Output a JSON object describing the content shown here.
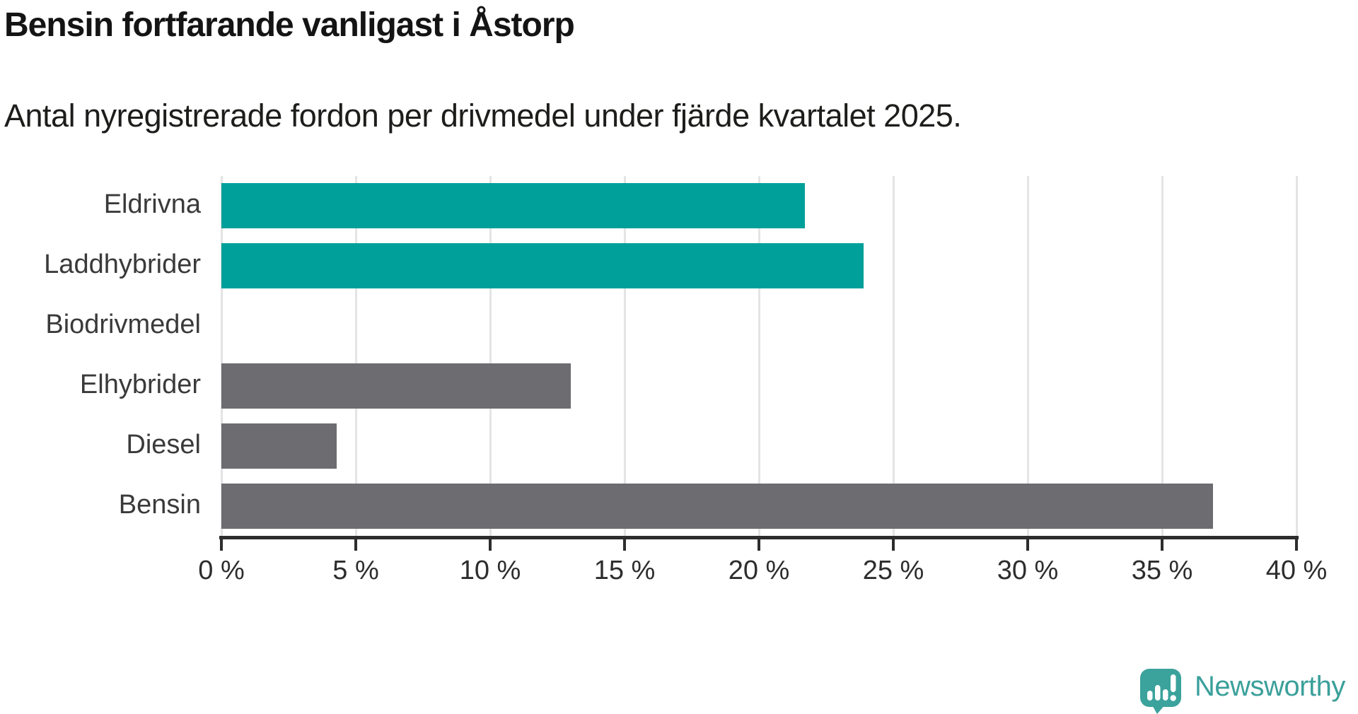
{
  "header": {
    "title": "Bensin fortfarande vanligast i Åstorp",
    "subtitle": "Antal nyregistrerade fordon per drivmedel under fjärde kvartalet 2025."
  },
  "chart_data": {
    "type": "bar",
    "orientation": "horizontal",
    "title": "Bensin fortfarande vanligast i Åstorp",
    "subtitle": "Antal nyregistrerade fordon per drivmedel under fjärde kvartalet 2025.",
    "categories": [
      "Eldrivna",
      "Laddhybrider",
      "Biodrivmedel",
      "Elhybrider",
      "Diesel",
      "Bensin"
    ],
    "values": [
      21.7,
      23.9,
      0,
      13.0,
      4.3,
      36.9
    ],
    "bar_colors": [
      "#00a09a",
      "#00a09a",
      "#6c6c71",
      "#6c6c71",
      "#6c6c71",
      "#6c6c71"
    ],
    "xlim": [
      0,
      40
    ],
    "x_tick_step": 5,
    "x_tick_labels": [
      "0 %",
      "5 %",
      "10 %",
      "15 %",
      "20 %",
      "25 %",
      "30 %",
      "35 %",
      "40 %"
    ],
    "xlabel": "",
    "ylabel": "",
    "grid": true,
    "gridline_color": "#e4e4e4",
    "axis_color": "#2d2d2d",
    "legend": "none"
  },
  "colors": {
    "accent_teal": "#00a09a",
    "neutral_gray": "#6c6c71",
    "logo_teal": "#3ba09b"
  },
  "branding": {
    "logo_text": "Newsworthy"
  }
}
